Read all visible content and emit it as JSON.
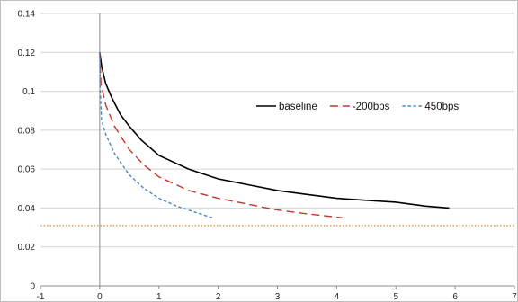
{
  "chart_data": {
    "type": "line",
    "title": "",
    "xlabel": "",
    "ylabel": "",
    "xlim": [
      -1,
      7
    ],
    "ylim": [
      0,
      0.14
    ],
    "x_ticks": [
      "-1",
      "0",
      "1",
      "2",
      "3",
      "4",
      "5",
      "6",
      "7"
    ],
    "y_ticks": [
      "0",
      "0.02",
      "0.04",
      "0.06",
      "0.08",
      "0.1",
      "0.12",
      "0.14"
    ],
    "grid": "horizontal",
    "legend_position": "right",
    "series": [
      {
        "name": "baseline",
        "color": "#000000",
        "dash": "solid",
        "x": [
          0,
          0.03,
          0.1,
          0.2,
          0.35,
          0.5,
          0.7,
          1.0,
          1.5,
          2.0,
          2.5,
          3.0,
          3.5,
          4.0,
          4.5,
          5.0,
          5.5,
          5.9
        ],
        "y": [
          0.12,
          0.113,
          0.104,
          0.097,
          0.088,
          0.082,
          0.075,
          0.067,
          0.06,
          0.055,
          0.052,
          0.049,
          0.047,
          0.045,
          0.044,
          0.043,
          0.041,
          0.04
        ]
      },
      {
        "name": "-200bps",
        "color": "#c0392b",
        "dash": "long",
        "x": [
          0,
          0.02,
          0.1,
          0.25,
          0.5,
          0.75,
          1.0,
          1.5,
          2.0,
          2.5,
          3.0,
          3.5,
          4.1
        ],
        "y": [
          0.12,
          0.104,
          0.093,
          0.082,
          0.07,
          0.062,
          0.056,
          0.049,
          0.045,
          0.042,
          0.039,
          0.037,
          0.035
        ]
      },
      {
        "name": "450bps",
        "color": "#4a86c6",
        "dash": "short",
        "x": [
          0,
          0.01,
          0.03,
          0.1,
          0.25,
          0.5,
          0.75,
          1.0,
          1.3,
          1.6,
          1.9
        ],
        "y": [
          0.12,
          0.1,
          0.085,
          0.078,
          0.068,
          0.057,
          0.05,
          0.045,
          0.041,
          0.038,
          0.035
        ]
      },
      {
        "name": "",
        "color": "#e08a1e",
        "dash": "dotted",
        "x": [
          -1,
          7
        ],
        "y": [
          0.031,
          0.031
        ]
      }
    ]
  }
}
